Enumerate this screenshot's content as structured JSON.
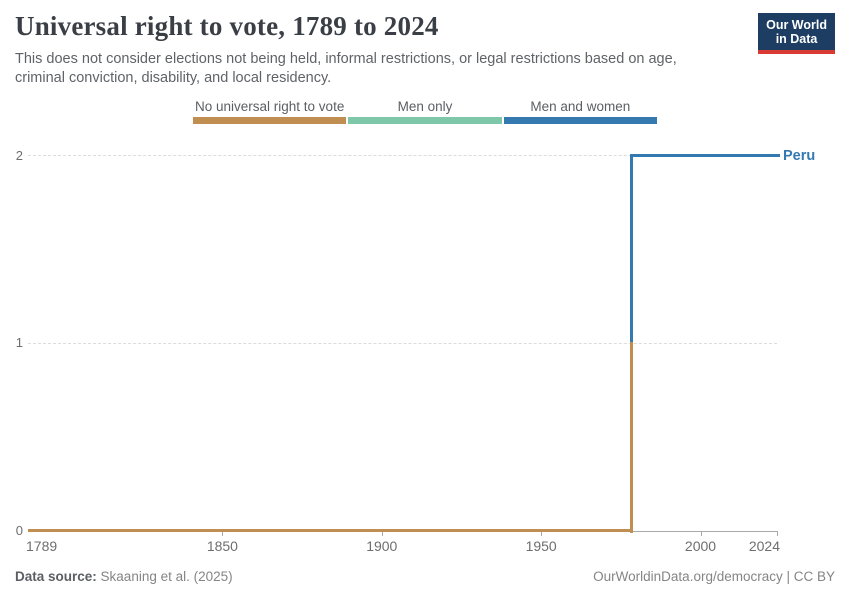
{
  "header": {
    "title": "Universal right to vote, 1789 to 2024",
    "subtitle": "This does not consider elections not being held, informal restrictions, or legal restrictions based on age, criminal conviction, disability, and local residency.",
    "logo": {
      "line1": "Our World",
      "line2": "in Data",
      "bg_color": "#1d3d63",
      "accent_color": "#d93a34"
    }
  },
  "chart_data": {
    "type": "line",
    "title": "Universal right to vote, 1789 to 2024",
    "entity": "Peru",
    "x": {
      "min": 1789,
      "max": 2024,
      "tick_labels": [
        "1789",
        "1850",
        "1900",
        "1950",
        "2000",
        "2024"
      ],
      "tick_years": [
        1789,
        1850,
        1900,
        1950,
        2000,
        2024
      ]
    },
    "y": {
      "min": 0,
      "max": 2,
      "tick_values": [
        0,
        1,
        2
      ],
      "tick_labels": [
        "0",
        "1",
        "2"
      ],
      "gridline_values": [
        1,
        2
      ]
    },
    "categories": [
      {
        "value": 0,
        "label": "No universal right to vote",
        "color": "#bf8e50"
      },
      {
        "value": 1,
        "label": "Men only",
        "color": "#7ec8a9"
      },
      {
        "value": 2,
        "label": "Men and women",
        "color": "#3579b1"
      }
    ],
    "series": [
      {
        "name": "Peru",
        "label_color": "#3579b1",
        "steps": [
          {
            "start_year": 1789,
            "end_year": 1978,
            "value": 0,
            "category": "No universal right to vote"
          },
          {
            "start_year": 1978,
            "end_year": 2024,
            "value": 2,
            "category": "Men and women"
          }
        ]
      }
    ],
    "grid": "dashed-horizontal",
    "legend_position": "top"
  },
  "footer": {
    "source_prefix": "Data source:",
    "source": "Skaaning et al. (2025)",
    "credit": "OurWorldinData.org/democracy | CC BY"
  }
}
